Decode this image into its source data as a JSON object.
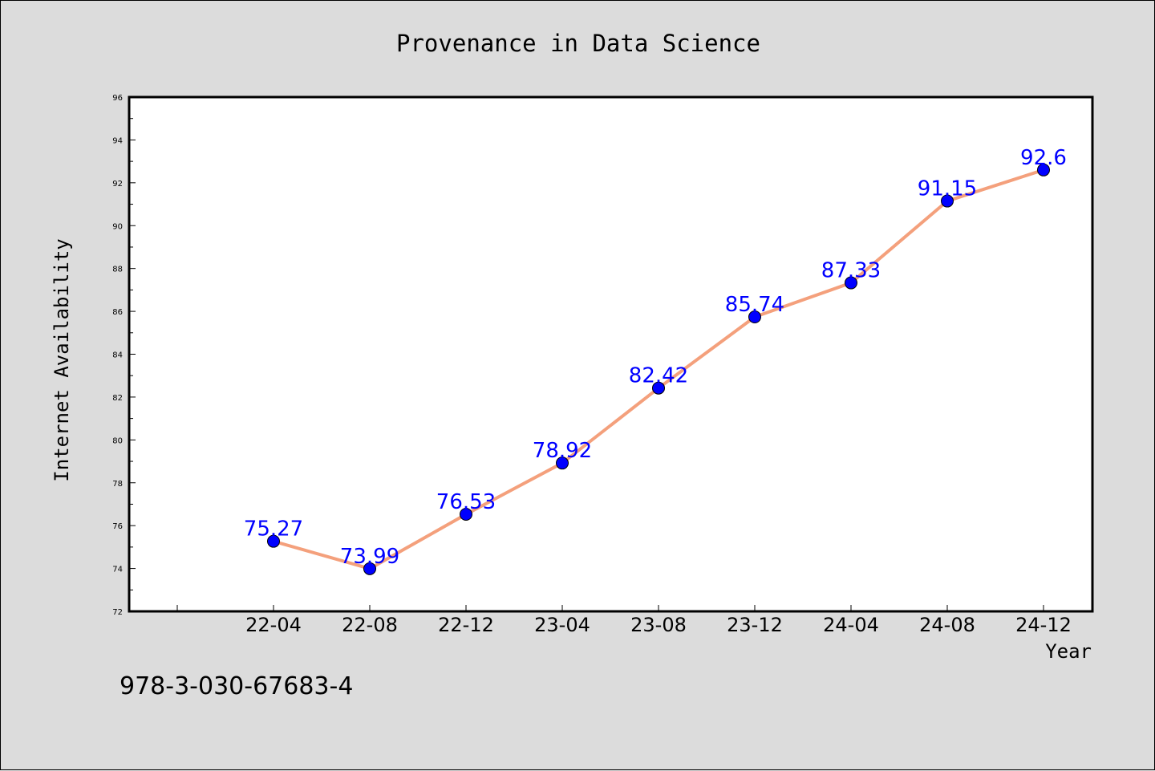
{
  "chart_data": {
    "type": "line",
    "title": "Provenance in Data Science",
    "xlabel": "Year",
    "ylabel": "Internet Availability",
    "categories": [
      "22-04",
      "22-08",
      "22-12",
      "23-04",
      "23-08",
      "23-12",
      "24-04",
      "24-08",
      "24-12"
    ],
    "series": [
      {
        "values": [
          75.27,
          73.99,
          76.53,
          78.92,
          82.42,
          85.74,
          87.33,
          91.15,
          92.6
        ],
        "data_labels": [
          "75.27",
          "73.99",
          "76.53",
          "78.92",
          "82.42",
          "85.74",
          "87.33",
          "91.15",
          "92.6"
        ]
      }
    ],
    "ylim": [
      72,
      96
    ],
    "yticks": [
      "72",
      "74",
      "76",
      "78",
      "80",
      "82",
      "84",
      "86",
      "88",
      "90",
      "92",
      "94",
      "96"
    ],
    "grid": false,
    "legend": "none",
    "colors": {
      "line": "#f4a07c",
      "marker": "#0000ff",
      "data_label": "#0000ff",
      "background": "#dcdcdc",
      "plot_area": "#ffffff"
    }
  },
  "footnote": "978-3-030-67683-4"
}
